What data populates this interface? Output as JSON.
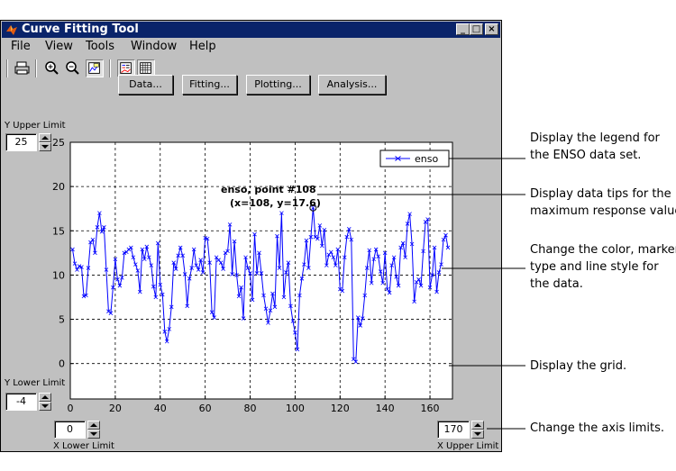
{
  "window": {
    "title": "Curve Fitting Tool",
    "controls": [
      "_",
      "□",
      "×"
    ]
  },
  "menu": [
    "File",
    "View",
    "Tools",
    "Window",
    "Help"
  ],
  "toolbar_icons": [
    "print-icon",
    "zoom-in-icon",
    "zoom-out-icon",
    "data-cursor-icon",
    "legend-icon",
    "grid-icon"
  ],
  "buttons": {
    "data": "Data...",
    "fitting": "Fitting...",
    "plotting": "Plotting...",
    "analysis": "Analysis..."
  },
  "limits": {
    "y_upper_label": "Y Upper Limit",
    "y_upper_value": "25",
    "y_lower_label": "Y Lower Limit",
    "y_lower_value": "-4",
    "x_lower_label": "X Lower Limit",
    "x_lower_value": "0",
    "x_upper_label": "X Upper Limit",
    "x_upper_value": "170"
  },
  "legend": {
    "entry": "enso"
  },
  "datatip": {
    "line1": "enso, point #108",
    "line2": "(x=108, y=17.6)"
  },
  "callouts": {
    "legend_line1": "Display the legend for",
    "legend_line2": "the ENSO data set.",
    "tips_line1": "Display data tips for the",
    "tips_line2": "maximum response value.",
    "style_line1": "Change the color, marker",
    "style_line2": "type and line style for",
    "style_line3": "the data.",
    "grid": "Display the grid.",
    "limits": "Change the axis limits."
  },
  "colors": {
    "series": "#0000ff",
    "titlebar": "#0a246a",
    "chrome": "#c0c0c0"
  },
  "chart_data": {
    "type": "line",
    "series": [
      {
        "name": "enso",
        "x": [
          1,
          2,
          3,
          4,
          5,
          6,
          7,
          8,
          9,
          10,
          11,
          12,
          13,
          14,
          15,
          16,
          17,
          18,
          19,
          20,
          21,
          22,
          23,
          24,
          25,
          26,
          27,
          28,
          29,
          30,
          31,
          32,
          33,
          34,
          35,
          36,
          37,
          38,
          39,
          40,
          41,
          42,
          43,
          44,
          45,
          46,
          47,
          48,
          49,
          50,
          51,
          52,
          53,
          54,
          55,
          56,
          57,
          58,
          59,
          60,
          61,
          62,
          63,
          64,
          65,
          66,
          67,
          68,
          69,
          70,
          71,
          72,
          73,
          74,
          75,
          76,
          77,
          78,
          79,
          80,
          81,
          82,
          83,
          84,
          85,
          86,
          87,
          88,
          89,
          90,
          91,
          92,
          93,
          94,
          95,
          96,
          97,
          98,
          99,
          100,
          101,
          102,
          103,
          104,
          105,
          106,
          107,
          108,
          109,
          110,
          111,
          112,
          113,
          114,
          115,
          116,
          117,
          118,
          119,
          120,
          121,
          122,
          123,
          124,
          125,
          126,
          127,
          128,
          129,
          130,
          131,
          132,
          133,
          134,
          135,
          136,
          137,
          138,
          139,
          140,
          141,
          142,
          143,
          144,
          145,
          146,
          147,
          148,
          149,
          150,
          151,
          152,
          153,
          154,
          155,
          156,
          157,
          158,
          159,
          160,
          161,
          162,
          163,
          164,
          165,
          166,
          167,
          168
        ],
        "y": [
          12.9,
          11.3,
          10.6,
          11.0,
          10.9,
          7.6,
          7.7,
          10.8,
          13.7,
          14.0,
          12.5,
          15.4,
          17.0,
          14.9,
          15.4,
          10.6,
          5.9,
          5.7,
          8.6,
          11.8,
          9.5,
          8.8,
          9.7,
          12.5,
          12.6,
          12.9,
          13.1,
          12.0,
          11.2,
          10.5,
          8.1,
          12.9,
          11.8,
          13.2,
          12.0,
          11.1,
          8.7,
          7.5,
          13.6,
          8.9,
          7.8,
          3.6,
          2.5,
          3.9,
          6.4,
          11.4,
          10.7,
          12.2,
          13.1,
          12.2,
          10.1,
          6.5,
          9.6,
          10.8,
          12.9,
          11.1,
          10.6,
          11.7,
          10.3,
          14.2,
          14.1,
          11.4,
          5.8,
          5.2,
          12.0,
          11.7,
          11.4,
          10.7,
          12.5,
          12.7,
          15.7,
          10.1,
          13.8,
          10.0,
          7.6,
          8.6,
          5.1,
          12.0,
          10.8,
          10.2,
          7.2,
          14.6,
          10.2,
          12.5,
          10.2,
          7.7,
          6.2,
          4.6,
          6.0,
          7.9,
          6.4,
          14.4,
          10.8,
          17.0,
          7.5,
          10.3,
          11.4,
          6.5,
          4.8,
          3.5,
          1.6,
          7.7,
          9.6,
          11.2,
          13.9,
          10.8,
          14.3,
          17.6,
          14.3,
          14.1,
          15.6,
          13.3,
          15.1,
          11.1,
          12.3,
          12.6,
          12.0,
          11.1,
          12.9,
          8.4,
          8.2,
          12.0,
          14.3,
          15.2,
          14.0,
          0.5,
          0.2,
          5.2,
          4.3,
          5.1,
          7.7,
          10.8,
          12.8,
          9.1,
          11.8,
          12.9,
          12.1,
          10.4,
          9.1,
          12.5,
          8.4,
          8.0,
          11.1,
          12.0,
          9.8,
          8.8,
          13.1,
          13.6,
          12.0,
          15.8,
          16.9,
          13.5,
          7.0,
          9.2,
          9.5,
          8.8,
          12.7,
          16.0,
          16.3,
          8.6,
          10.0,
          13.1,
          8.1,
          10.3,
          11.2,
          14.0,
          14.5,
          13.1
        ]
      }
    ],
    "xlim": [
      0,
      170
    ],
    "ylim": [
      -4,
      25
    ],
    "xticks": [
      0,
      20,
      40,
      60,
      80,
      100,
      120,
      140,
      160
    ],
    "yticks": [
      0,
      5,
      10,
      15,
      20,
      25
    ],
    "grid": true,
    "legend": "top-right",
    "highlight_point": {
      "x": 108,
      "y": 17.6
    }
  }
}
